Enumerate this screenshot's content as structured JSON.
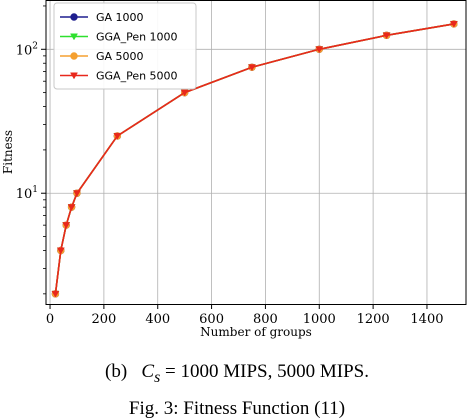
{
  "chart_data": {
    "type": "line",
    "xlabel": "Number of groups",
    "ylabel": "Fitness",
    "yscale": "log",
    "xlim": [
      -15,
      1545
    ],
    "ylim": [
      1.7,
      220
    ],
    "grid": true,
    "legend_position": "top-left",
    "x_ticks": [
      0,
      200,
      400,
      600,
      800,
      1000,
      1200,
      1400
    ],
    "y_ticks": [
      10,
      100
    ],
    "y_tick_labels": [
      {
        "base": "10",
        "exp": "1"
      },
      {
        "base": "10",
        "exp": "2"
      }
    ],
    "x": [
      20,
      40,
      60,
      80,
      100,
      250,
      500,
      750,
      1000,
      1250,
      1500
    ],
    "series": [
      {
        "name": "GA 1000",
        "color": "#1f1f8f",
        "marker": "circle",
        "values": [
          2.0,
          4.0,
          6.0,
          8.0,
          10.0,
          25.0,
          50.0,
          75.0,
          100.0,
          125.0,
          150.0
        ]
      },
      {
        "name": "GGA_Pen 1000",
        "color": "#2ee02e",
        "marker": "triangle-down",
        "values": [
          2.0,
          4.0,
          6.0,
          8.0,
          10.0,
          25.0,
          50.0,
          75.0,
          100.0,
          125.0,
          150.0
        ]
      },
      {
        "name": "GA 5000",
        "color": "#f5a030",
        "marker": "circle",
        "values": [
          2.0,
          4.0,
          6.0,
          8.0,
          10.0,
          25.0,
          50.0,
          75.0,
          100.0,
          125.0,
          150.0
        ]
      },
      {
        "name": "GGA_Pen 5000",
        "color": "#e8281c",
        "marker": "triangle-down",
        "values": [
          2.0,
          4.0,
          6.0,
          8.0,
          10.0,
          25.0,
          50.0,
          75.0,
          100.0,
          125.0,
          150.0
        ]
      }
    ]
  },
  "caption": {
    "label": "(b)",
    "var": "C",
    "sub": "s",
    "text": "= 1000 MIPS, 5000 MIPS."
  },
  "figure_caption": "Fig. 3:  Fitness Function (11)"
}
